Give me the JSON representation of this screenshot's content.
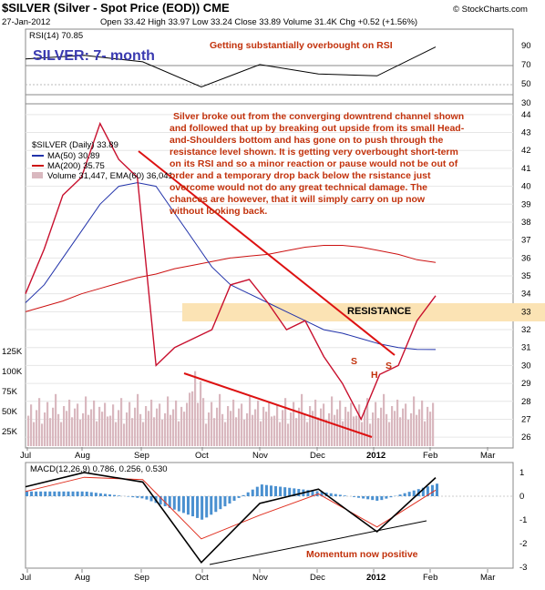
{
  "header": {
    "symbol_line": "$SILVER (Silver - Spot Price (EOD)) CME",
    "date": "27-Jan-2012",
    "quote": "Open 33.42  High 33.97  Low 33.24  Close 33.89  Volume 31.4K  Chg +0.52 (+1.56%)",
    "watermark": "© StockCharts.com"
  },
  "rsi_panel": {
    "label": "RSI(14) 70.85",
    "big_title": "SILVER: 7- month",
    "comment": "Getting substantially overbought on RSI",
    "ticks": [
      "90",
      "70",
      "50",
      "30",
      "10"
    ]
  },
  "price_panel": {
    "legend": {
      "symbol": "$SILVER (Daily) 33.89",
      "ma50": "MA(50) 30.89",
      "ma200": "MA(200) 35.75",
      "volume": "Volume 31,447, EMA(60) 36,041"
    },
    "commentary": [
      "Silver broke out from the converging downtrend channel shown",
      "and followed  that up by breaking out upside from its small Head-",
      "and-Shoulders bottom and has gone on to push through the",
      "resistance level shown. It is getting very overbought short-term",
      "on its RSI and so a minor reaction or pause would not be out of",
      "order and a temporary drop back below the rsistance just",
      "overcome would not do any great technical damage. The",
      "chances are however, that it will simply carry on up now",
      "without looking back."
    ],
    "resistance_label": "RESISTANCE",
    "hs_labels": [
      "S",
      "H",
      "S"
    ],
    "price_ticks": [
      "44",
      "43",
      "42",
      "41",
      "40",
      "39",
      "38",
      "37",
      "36",
      "35",
      "34",
      "33",
      "32",
      "31",
      "30",
      "29",
      "28",
      "27",
      "26"
    ],
    "volume_ticks": [
      "125K",
      "100K",
      "75K",
      "50K",
      "25K"
    ]
  },
  "macd_panel": {
    "label": "MACD(12,26,9) 0.786, 0.256, 0.530",
    "macd_value": "0.786",
    "signal_value": "0.256",
    "hist_value": "0.530",
    "comment": "Momentum now positive",
    "ticks": [
      "1",
      "0",
      "-1",
      "-2",
      "-3"
    ]
  },
  "x_axis": {
    "months": [
      "Jul",
      "Aug",
      "Sep",
      "Oct",
      "Nov",
      "Dec",
      "2012",
      "Feb",
      "Mar"
    ]
  },
  "colors": {
    "candle": "#c8102e",
    "ma50": "#2233aa",
    "ma200": "#cc1111",
    "volume": "#d9b8bf",
    "resistance_band": "#fbe3b4",
    "trendline": "#dd1111",
    "annotation": "#c2320c",
    "macd_hist": "#4a90d0",
    "macd_signal": "#e03020"
  },
  "chart_data": [
    {
      "type": "line",
      "title": "RSI(14) 70.85",
      "x": [
        "Jul",
        "Aug",
        "Sep",
        "Oct",
        "Nov",
        "Dec",
        "Jan",
        "Jan 27"
      ],
      "series": [
        {
          "name": "RSI(14)",
          "values": [
            58,
            62,
            55,
            28,
            52,
            42,
            40,
            70.85
          ]
        }
      ],
      "ylim": [
        10,
        90
      ]
    },
    {
      "type": "line",
      "title": "$SILVER (Daily) 33.89",
      "x": [
        "Jul 1",
        "Jul 15",
        "Aug 1",
        "Aug 15",
        "Aug 22",
        "Sep 6",
        "Sep 20",
        "Sep 26",
        "Oct 5",
        "Oct 15",
        "Oct 25",
        "Nov 1",
        "Nov 8",
        "Nov 15",
        "Nov 25",
        "Dec 1",
        "Dec 10",
        "Dec 20",
        "Dec 29",
        "Jan 5",
        "Jan 12",
        "Jan 20",
        "Jan 27"
      ],
      "series": [
        {
          "name": "$SILVER",
          "values": [
            34.0,
            36.5,
            39.5,
            40.5,
            43.5,
            41.5,
            40.5,
            30.0,
            31.0,
            31.5,
            32.0,
            34.5,
            34.8,
            33.5,
            32.0,
            32.5,
            30.5,
            29.0,
            27.0,
            29.5,
            30.0,
            32.5,
            33.89
          ]
        },
        {
          "name": "MA(50)",
          "values": [
            33.5,
            34.5,
            36.0,
            37.5,
            39.0,
            40.0,
            40.2,
            40.0,
            38.5,
            37.0,
            35.5,
            34.5,
            34.0,
            33.5,
            33.0,
            32.5,
            32.0,
            31.8,
            31.5,
            31.2,
            31.0,
            30.9,
            30.89
          ]
        },
        {
          "name": "MA(200)",
          "values": [
            33.0,
            33.3,
            33.6,
            34.0,
            34.3,
            34.6,
            34.9,
            35.1,
            35.4,
            35.6,
            35.8,
            36.0,
            36.1,
            36.2,
            36.4,
            36.6,
            36.7,
            36.7,
            36.6,
            36.4,
            36.2,
            35.9,
            35.75
          ]
        }
      ],
      "ylim": [
        25.5,
        44.5
      ]
    },
    {
      "type": "line",
      "title": "MACD(12,26,9) 0.786, 0.256, 0.530",
      "x": [
        "Jul",
        "Aug",
        "Sep",
        "Oct",
        "Nov",
        "Dec",
        "Jan",
        "Jan 27"
      ],
      "series": [
        {
          "name": "MACD",
          "values": [
            0.4,
            1.0,
            0.6,
            -2.8,
            -0.3,
            0.3,
            -1.5,
            0.786
          ]
        },
        {
          "name": "Signal",
          "values": [
            0.2,
            0.8,
            0.7,
            -1.8,
            -0.8,
            0.1,
            -1.3,
            0.256
          ]
        }
      ],
      "ylim": [
        -3,
        1
      ]
    }
  ]
}
